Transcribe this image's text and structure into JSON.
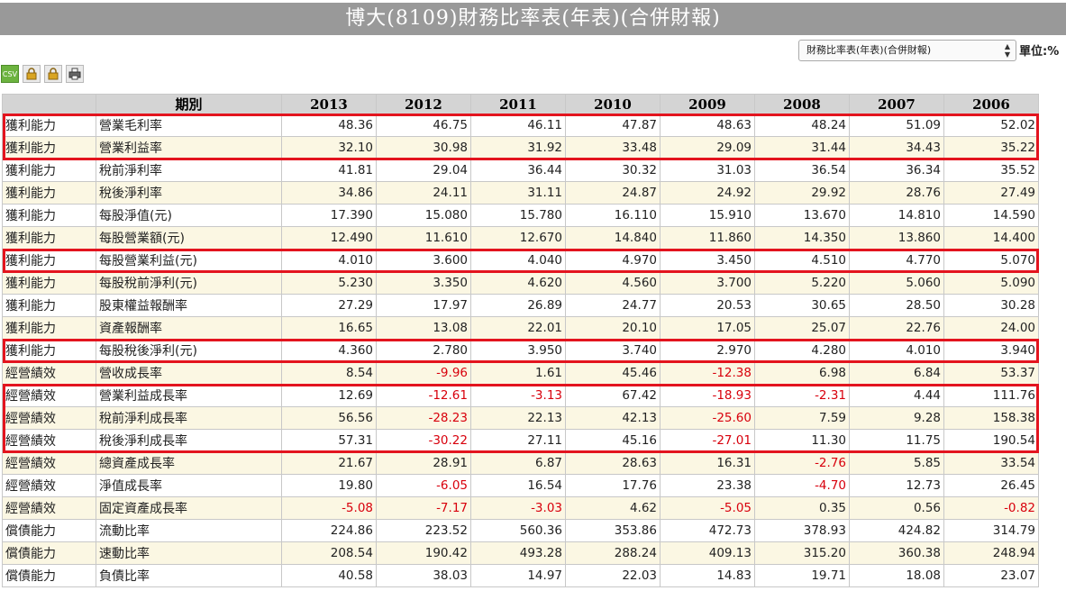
{
  "header": {
    "title": "博大(8109)財務比率表(年表)(合併財報)"
  },
  "controls": {
    "report_select": "財務比率表(年表)(合併財報)",
    "unit_label": "單位:%"
  },
  "toolbar": {
    "buttons": [
      {
        "name": "csv-export",
        "label": "CSV"
      },
      {
        "name": "lock",
        "icon": "lock-icon"
      },
      {
        "name": "lock",
        "icon": "lock-icon"
      },
      {
        "name": "print",
        "icon": "printer-icon"
      }
    ]
  },
  "table": {
    "columns": [
      "期別",
      "2013",
      "2012",
      "2011",
      "2010",
      "2009",
      "2008",
      "2007",
      "2006"
    ],
    "rows": [
      {
        "cat": "獲利能力",
        "item": "營業毛利率",
        "values": [
          "48.36",
          "46.75",
          "46.11",
          "47.87",
          "48.63",
          "48.24",
          "51.09",
          "52.02"
        ]
      },
      {
        "cat": "獲利能力",
        "item": "營業利益率",
        "values": [
          "32.10",
          "30.98",
          "31.92",
          "33.48",
          "29.09",
          "31.44",
          "34.43",
          "35.22"
        ]
      },
      {
        "cat": "獲利能力",
        "item": "稅前淨利率",
        "values": [
          "41.81",
          "29.04",
          "36.44",
          "30.32",
          "31.03",
          "36.54",
          "36.34",
          "35.52"
        ]
      },
      {
        "cat": "獲利能力",
        "item": "稅後淨利率",
        "values": [
          "34.86",
          "24.11",
          "31.11",
          "24.87",
          "24.92",
          "29.92",
          "28.76",
          "27.49"
        ]
      },
      {
        "cat": "獲利能力",
        "item": "每股淨值(元)",
        "values": [
          "17.390",
          "15.080",
          "15.780",
          "16.110",
          "15.910",
          "13.670",
          "14.810",
          "14.590"
        ]
      },
      {
        "cat": "獲利能力",
        "item": "每股營業額(元)",
        "values": [
          "12.490",
          "11.610",
          "12.670",
          "14.840",
          "11.860",
          "14.350",
          "13.860",
          "14.400"
        ]
      },
      {
        "cat": "獲利能力",
        "item": "每股營業利益(元)",
        "values": [
          "4.010",
          "3.600",
          "4.040",
          "4.970",
          "3.450",
          "4.510",
          "4.770",
          "5.070"
        ]
      },
      {
        "cat": "獲利能力",
        "item": "每股稅前淨利(元)",
        "values": [
          "5.230",
          "3.350",
          "4.620",
          "4.560",
          "3.700",
          "5.220",
          "5.060",
          "5.090"
        ]
      },
      {
        "cat": "獲利能力",
        "item": "股東權益報酬率",
        "values": [
          "27.29",
          "17.97",
          "26.89",
          "24.77",
          "20.53",
          "30.65",
          "28.50",
          "30.28"
        ]
      },
      {
        "cat": "獲利能力",
        "item": "資產報酬率",
        "values": [
          "16.65",
          "13.08",
          "22.01",
          "20.10",
          "17.05",
          "25.07",
          "22.76",
          "24.00"
        ]
      },
      {
        "cat": "獲利能力",
        "item": "每股稅後淨利(元)",
        "values": [
          "4.360",
          "2.780",
          "3.950",
          "3.740",
          "2.970",
          "4.280",
          "4.010",
          "3.940"
        ]
      },
      {
        "cat": "經營績效",
        "item": "營收成長率",
        "values": [
          "8.54",
          "-9.96",
          "1.61",
          "45.46",
          "-12.38",
          "6.98",
          "6.84",
          "53.37"
        ]
      },
      {
        "cat": "經營績效",
        "item": "營業利益成長率",
        "values": [
          "12.69",
          "-12.61",
          "-3.13",
          "67.42",
          "-18.93",
          "-2.31",
          "4.44",
          "111.76"
        ]
      },
      {
        "cat": "經營績效",
        "item": "稅前淨利成長率",
        "values": [
          "56.56",
          "-28.23",
          "22.13",
          "42.13",
          "-25.60",
          "7.59",
          "9.28",
          "158.38"
        ]
      },
      {
        "cat": "經營績效",
        "item": "稅後淨利成長率",
        "values": [
          "57.31",
          "-30.22",
          "27.11",
          "45.16",
          "-27.01",
          "11.30",
          "11.75",
          "190.54"
        ]
      },
      {
        "cat": "經營績效",
        "item": "總資產成長率",
        "values": [
          "21.67",
          "28.91",
          "6.87",
          "28.63",
          "16.31",
          "-2.76",
          "5.85",
          "33.54"
        ]
      },
      {
        "cat": "經營績效",
        "item": "淨值成長率",
        "values": [
          "19.80",
          "-6.05",
          "16.54",
          "17.76",
          "23.38",
          "-4.70",
          "12.73",
          "26.45"
        ]
      },
      {
        "cat": "經營績效",
        "item": "固定資產成長率",
        "values": [
          "-5.08",
          "-7.17",
          "-3.03",
          "4.62",
          "-5.05",
          "0.35",
          "0.56",
          "-0.82"
        ]
      },
      {
        "cat": "償債能力",
        "item": "流動比率",
        "values": [
          "224.86",
          "223.52",
          "560.36",
          "353.86",
          "472.73",
          "378.93",
          "424.82",
          "314.79"
        ]
      },
      {
        "cat": "償債能力",
        "item": "速動比率",
        "values": [
          "208.54",
          "190.42",
          "493.28",
          "288.24",
          "409.13",
          "315.20",
          "360.38",
          "248.94"
        ]
      },
      {
        "cat": "償債能力",
        "item": "負債比率",
        "values": [
          "40.58",
          "38.03",
          "14.97",
          "22.03",
          "14.83",
          "19.71",
          "18.08",
          "23.07"
        ]
      }
    ]
  },
  "highlights": [
    {
      "first_row": 0,
      "last_row": 1
    },
    {
      "first_row": 6,
      "last_row": 6
    },
    {
      "first_row": 10,
      "last_row": 10
    },
    {
      "first_row": 12,
      "last_row": 14
    }
  ],
  "colors": {
    "negative": "#d8000c",
    "highlight": "#e3141e",
    "title_bg": "#999999",
    "alt_row": "#fbf7e3"
  }
}
